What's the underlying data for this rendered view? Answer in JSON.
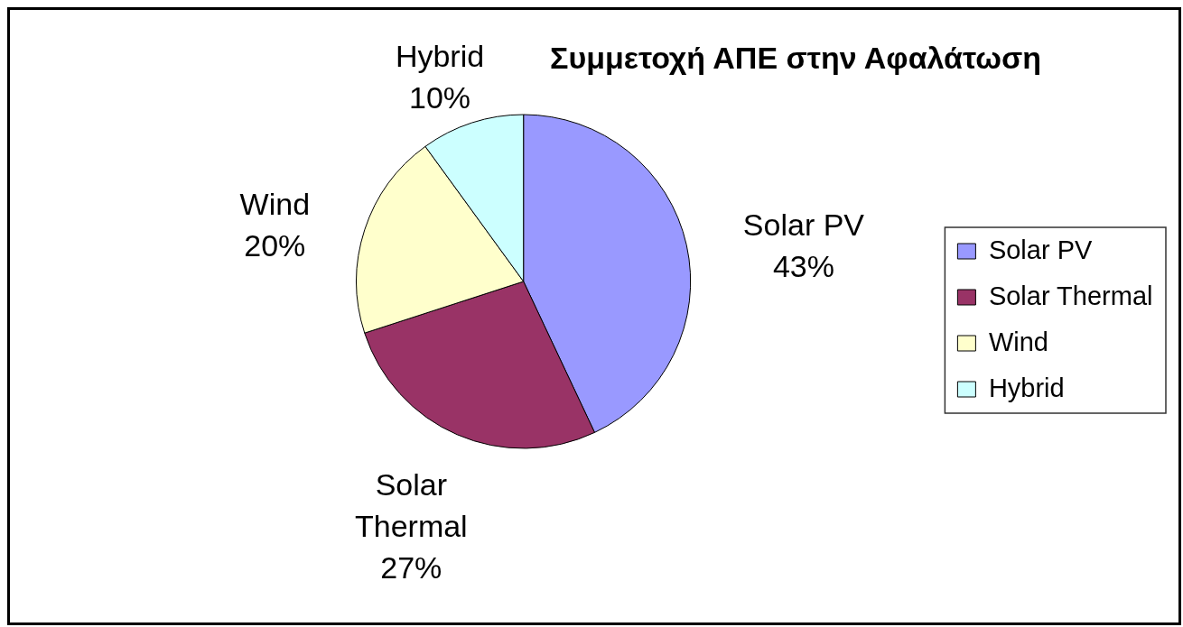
{
  "chart_data": {
    "type": "pie",
    "title": "Συμμετοχή ΑΠΕ στην Αφαλάτωση",
    "categories": [
      "Solar PV",
      "Solar Thermal",
      "Wind",
      "Hybrid"
    ],
    "values": [
      43,
      27,
      20,
      10
    ],
    "value_labels": [
      "43%",
      "27%",
      "20%",
      "10%"
    ],
    "colors": [
      "#9999ff",
      "#993366",
      "#ffffcc",
      "#ccffff"
    ],
    "legend": "right"
  }
}
